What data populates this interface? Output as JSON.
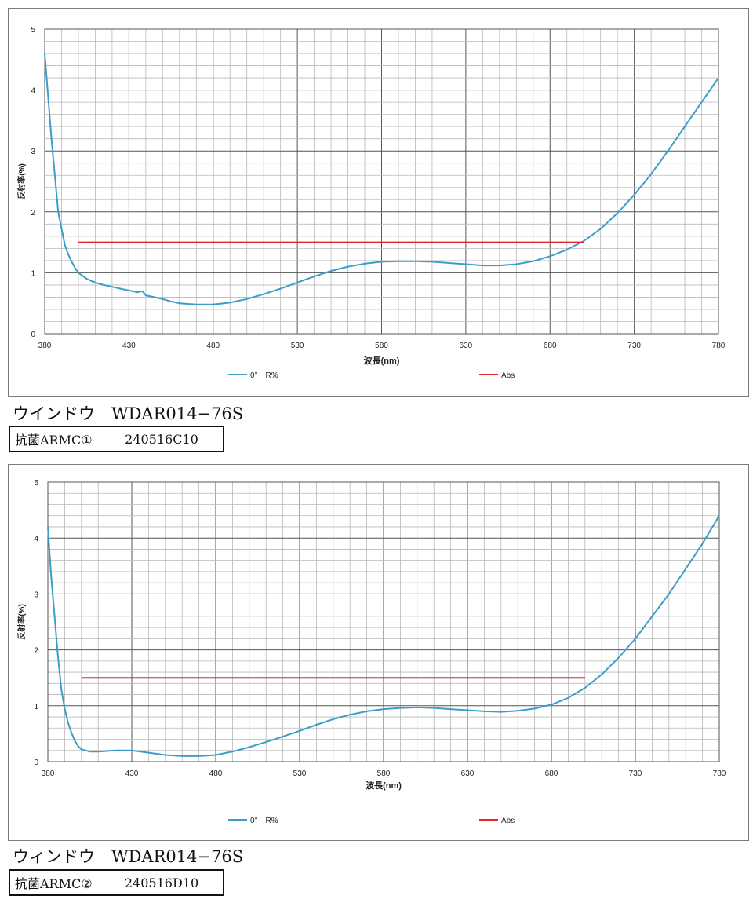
{
  "colors": {
    "reflectance": "#3c9dc9",
    "abs": "#e4262c",
    "grid": "#b8b8b8",
    "grid_major": "#555555"
  },
  "panels": [
    {
      "caption": "ウインドウ　WDAR014−76S",
      "table": {
        "label": "抗菌ARMC①",
        "value": "240516C10"
      },
      "chart_data": {
        "type": "line",
        "xlabel": "波長(nm)",
        "ylabel": "反射率(%)",
        "xlim": [
          380,
          780
        ],
        "ylim": [
          0,
          5
        ],
        "x_ticks": [
          "380",
          "430",
          "480",
          "530",
          "580",
          "630",
          "680",
          "730",
          "780"
        ],
        "y_ticks": [
          "0",
          "1",
          "2",
          "3",
          "4",
          "5"
        ],
        "legend": [
          "0°　R%",
          "Abs"
        ],
        "series": [
          {
            "name": "0°　R%",
            "x": [
              380,
              382,
              384,
              386,
              388,
              390,
              392,
              394,
              396,
              398,
              400,
              405,
              410,
              415,
              420,
              425,
              430,
              435,
              438,
              440,
              445,
              450,
              455,
              460,
              465,
              470,
              475,
              480,
              490,
              500,
              510,
              520,
              530,
              540,
              550,
              560,
              570,
              580,
              590,
              600,
              610,
              620,
              630,
              640,
              650,
              660,
              670,
              680,
              690,
              700,
              710,
              720,
              730,
              740,
              750,
              760,
              770,
              780
            ],
            "values": [
              4.6,
              3.9,
              3.2,
              2.6,
              2.0,
              1.72,
              1.45,
              1.3,
              1.18,
              1.08,
              1.0,
              0.9,
              0.84,
              0.8,
              0.77,
              0.74,
              0.71,
              0.68,
              0.7,
              0.63,
              0.6,
              0.57,
              0.53,
              0.5,
              0.49,
              0.48,
              0.48,
              0.48,
              0.51,
              0.57,
              0.65,
              0.74,
              0.84,
              0.94,
              1.03,
              1.1,
              1.15,
              1.18,
              1.19,
              1.19,
              1.18,
              1.16,
              1.14,
              1.12,
              1.12,
              1.14,
              1.19,
              1.27,
              1.38,
              1.52,
              1.72,
              1.98,
              2.28,
              2.62,
              3.0,
              3.4,
              3.8,
              4.2
            ]
          },
          {
            "name": "Abs",
            "x": [
              400,
              700
            ],
            "values": [
              1.5,
              1.5
            ]
          }
        ]
      }
    },
    {
      "caption": "ウィンドウ　WDAR014−76S",
      "table": {
        "label": "抗菌ARMC②",
        "value": "240516D10"
      },
      "chart_data": {
        "type": "line",
        "xlabel": "波長(nm)",
        "ylabel": "反射率(%)",
        "xlim": [
          380,
          780
        ],
        "ylim": [
          0,
          5
        ],
        "x_ticks": [
          "380",
          "430",
          "480",
          "530",
          "580",
          "630",
          "680",
          "730",
          "780"
        ],
        "y_ticks": [
          "0",
          "1",
          "2",
          "3",
          "4",
          "5"
        ],
        "legend": [
          "0°　R%",
          "Abs"
        ],
        "series": [
          {
            "name": "0°　R%",
            "x": [
              380,
              382,
              384,
              386,
              388,
              390,
              392,
              394,
              396,
              398,
              400,
              405,
              410,
              415,
              420,
              425,
              430,
              440,
              450,
              460,
              470,
              480,
              490,
              500,
              510,
              520,
              530,
              540,
              550,
              560,
              570,
              580,
              590,
              600,
              610,
              620,
              630,
              640,
              650,
              660,
              670,
              680,
              690,
              700,
              710,
              720,
              730,
              740,
              750,
              760,
              770,
              780
            ],
            "values": [
              4.2,
              3.3,
              2.6,
              1.9,
              1.3,
              0.95,
              0.7,
              0.52,
              0.38,
              0.28,
              0.22,
              0.18,
              0.18,
              0.19,
              0.2,
              0.2,
              0.2,
              0.16,
              0.12,
              0.1,
              0.1,
              0.12,
              0.18,
              0.26,
              0.35,
              0.45,
              0.55,
              0.66,
              0.76,
              0.84,
              0.9,
              0.94,
              0.96,
              0.97,
              0.96,
              0.94,
              0.92,
              0.9,
              0.89,
              0.91,
              0.95,
              1.02,
              1.14,
              1.32,
              1.56,
              1.86,
              2.2,
              2.6,
              3.0,
              3.45,
              3.9,
              4.4
            ]
          },
          {
            "name": "Abs",
            "x": [
              400,
              700
            ],
            "values": [
              1.5,
              1.5
            ]
          }
        ]
      }
    }
  ]
}
